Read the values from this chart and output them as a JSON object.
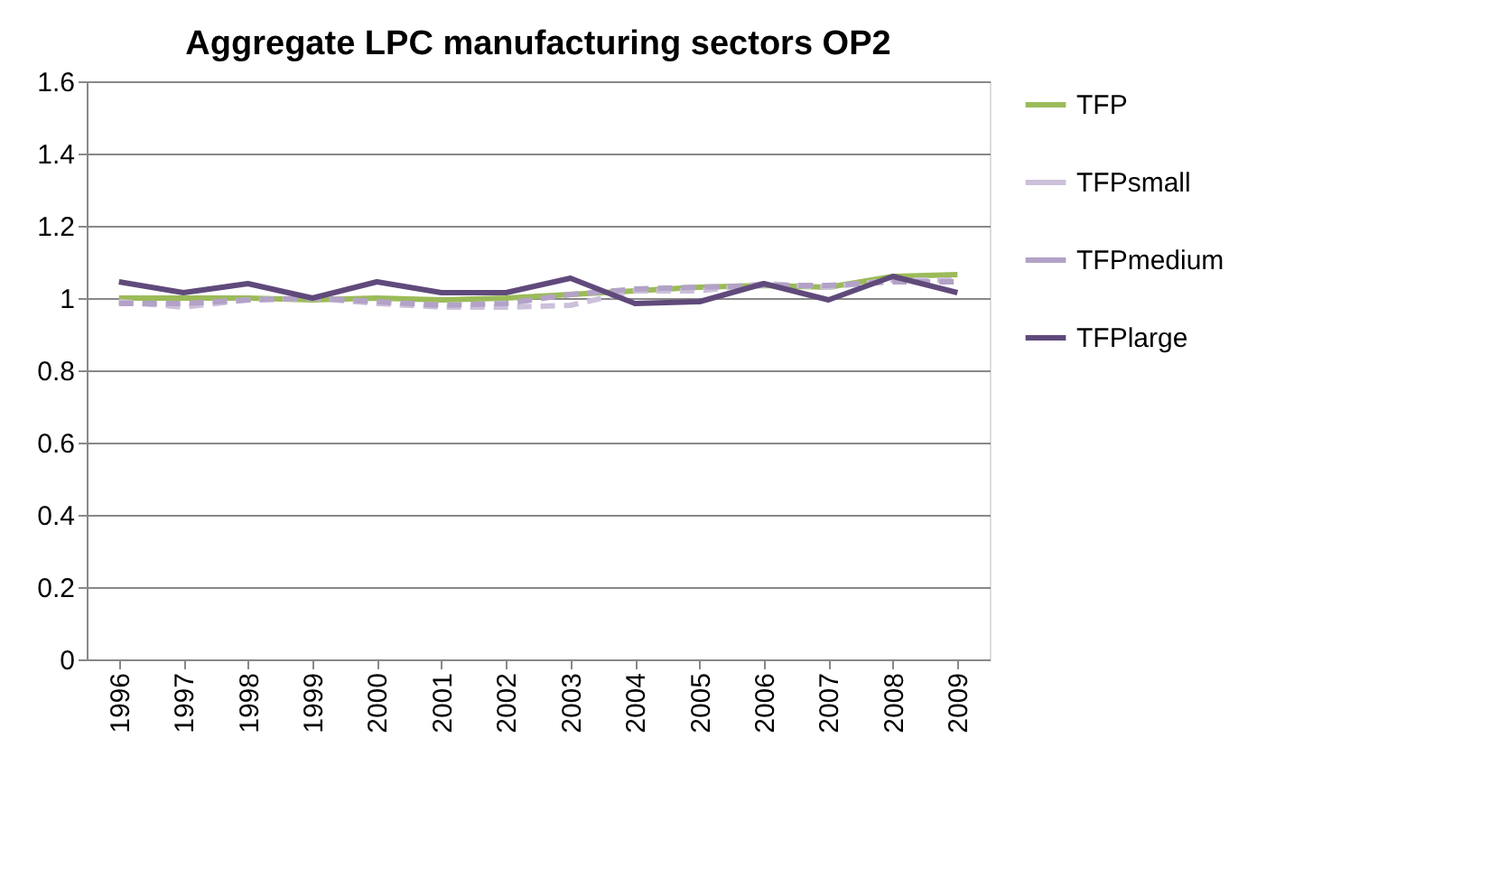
{
  "chart_data": {
    "type": "line",
    "title": "Aggregate LPC manufacturing sectors OP2",
    "categories": [
      "1996",
      "1997",
      "1998",
      "1999",
      "2000",
      "2001",
      "2002",
      "2003",
      "2004",
      "2005",
      "2006",
      "2007",
      "2008",
      "2009"
    ],
    "series": [
      {
        "name": "TFP",
        "color": "#9bbb59",
        "line_style": "solid",
        "values": [
          1.0,
          1.0,
          1.0,
          0.995,
          1.0,
          0.995,
          1.0,
          1.01,
          1.02,
          1.03,
          1.035,
          1.03,
          1.06,
          1.065
        ]
      },
      {
        "name": "TFPsmall",
        "color": "#ccc0da",
        "line_style": "dashed",
        "values": [
          0.99,
          0.975,
          0.995,
          1.0,
          0.985,
          0.975,
          0.975,
          0.98,
          1.02,
          1.02,
          1.04,
          1.03,
          1.05,
          1.05
        ]
      },
      {
        "name": "TFPmedium",
        "color": "#b3a2c7",
        "line_style": "dashed",
        "values": [
          0.985,
          0.985,
          0.995,
          1.0,
          0.99,
          0.98,
          0.985,
          1.01,
          1.025,
          1.03,
          1.035,
          1.035,
          1.045,
          1.045
        ]
      },
      {
        "name": "TFPlarge",
        "color": "#604a7b",
        "line_style": "solid",
        "values": [
          1.045,
          1.015,
          1.04,
          1.0,
          1.045,
          1.015,
          1.015,
          1.055,
          0.985,
          0.99,
          1.04,
          0.995,
          1.06,
          1.015
        ]
      }
    ],
    "ylim": [
      0,
      1.6
    ],
    "yticks": [
      0,
      0.2,
      0.4,
      0.6,
      0.8,
      1,
      1.2,
      1.4,
      1.6
    ],
    "grid": "y",
    "legend": "right",
    "marker": "none"
  }
}
